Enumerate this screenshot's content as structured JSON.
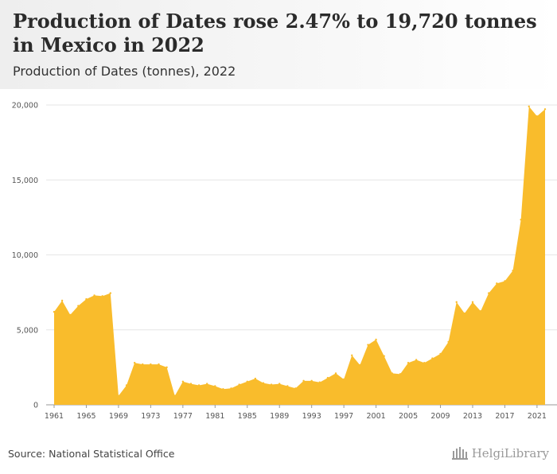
{
  "header": {
    "title": "Production of Dates rose 2.47% to 19,720 tonnes in Mexico in 2022",
    "subtitle": "Production of Dates (tonnes), 2022"
  },
  "footer": {
    "source": "Source: National Statistical Office",
    "logo_text": "HelgiLibrary"
  },
  "colors": {
    "area_fill": "#f9bc2c",
    "grid": "#e6e6e6",
    "baseline": "#999999"
  },
  "chart_data": {
    "type": "area",
    "title": "",
    "xlabel": "",
    "ylabel": "",
    "x": [
      1961,
      1962,
      1963,
      1964,
      1965,
      1966,
      1967,
      1968,
      1969,
      1970,
      1971,
      1972,
      1973,
      1974,
      1975,
      1976,
      1977,
      1978,
      1979,
      1980,
      1981,
      1982,
      1983,
      1984,
      1985,
      1986,
      1987,
      1988,
      1989,
      1990,
      1991,
      1992,
      1993,
      1994,
      1995,
      1996,
      1997,
      1998,
      1999,
      2000,
      2001,
      2002,
      2003,
      2004,
      2005,
      2006,
      2007,
      2008,
      2009,
      2010,
      2011,
      2012,
      2013,
      2014,
      2015,
      2016,
      2017,
      2018,
      2019,
      2020,
      2021,
      2022
    ],
    "series": [
      {
        "values": [
          6200,
          6950,
          6000,
          6600,
          7050,
          7300,
          7250,
          7450,
          600,
          1300,
          2800,
          2700,
          2700,
          2700,
          2500,
          600,
          1550,
          1400,
          1300,
          1400,
          1250,
          1050,
          1100,
          1350,
          1550,
          1750,
          1450,
          1350,
          1400,
          1250,
          1100,
          1600,
          1600,
          1500,
          1800,
          2100,
          1700,
          3300,
          2650,
          4000,
          4350,
          3250,
          2100,
          2050,
          2800,
          3000,
          2800,
          3100,
          3400,
          4200,
          6850,
          6100,
          6850,
          6250,
          7450,
          8100,
          8250,
          8950,
          12350,
          19900,
          19250,
          19720
        ]
      }
    ],
    "xticks": [
      1961,
      1965,
      1969,
      1973,
      1977,
      1981,
      1985,
      1989,
      1993,
      1997,
      2001,
      2005,
      2009,
      2013,
      2017,
      2021
    ],
    "yticks": [
      0,
      5000,
      10000,
      15000,
      20000
    ],
    "ytick_labels": [
      "0",
      "5,000",
      "10,000",
      "15,000",
      "20,000"
    ],
    "xlim": [
      1961,
      2022
    ],
    "ylim": [
      0,
      20000
    ],
    "grid": true,
    "legend": "none"
  }
}
